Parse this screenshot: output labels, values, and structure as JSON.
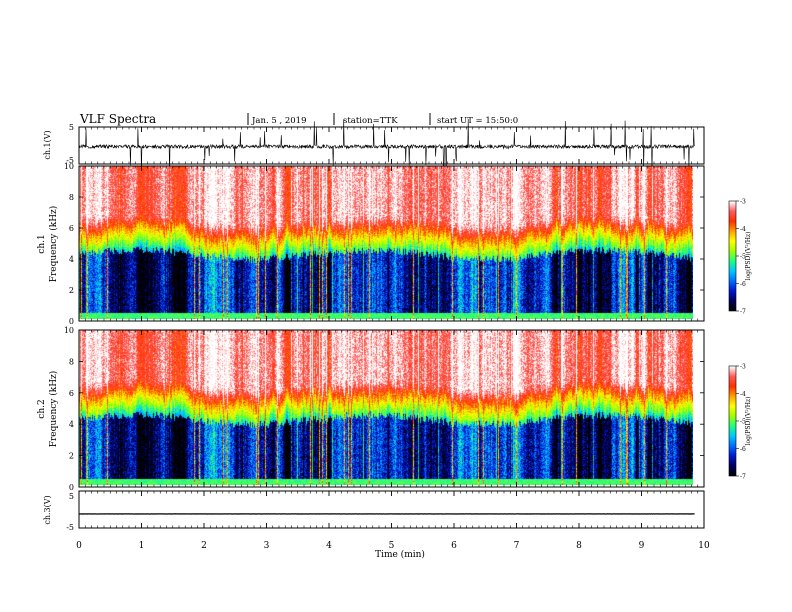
{
  "header": {
    "title": "VLF Spectra",
    "date": "Jan. 5 , 2019",
    "station": "station=TTK",
    "start": "start UT = 15:50:0"
  },
  "colors": {
    "map": [
      "#000000",
      "#000060",
      "#0018d0",
      "#0070ff",
      "#00c8ff",
      "#20ff80",
      "#a0ff00",
      "#ffff00",
      "#ffa000",
      "#ff3000",
      "#ff5a5a",
      "#ffffff"
    ]
  },
  "chart_data": [
    {
      "type": "line",
      "panel": "ch1-waveform",
      "ylabel": "ch.1(V)",
      "yticks": [
        "5",
        "-5"
      ],
      "ylim": [
        -5,
        5
      ],
      "xlim": [
        0,
        10
      ],
      "series": [
        {
          "values_description_free": true,
          "base": -0.3,
          "noise": 1.0
        }
      ]
    },
    {
      "type": "heatmap",
      "panel": "ch1-spectrogram",
      "ylabel": "ch.1 Frequency (kHz)",
      "ylabel_parts": [
        "ch.1",
        "Frequency (kHz)"
      ],
      "yticks": [
        "0",
        "2",
        "4",
        "6",
        "8",
        "10"
      ],
      "ylim": [
        0,
        10
      ],
      "xlim": [
        0,
        10
      ],
      "colorbar": {
        "label": "log(PSD)(V²/Hz)",
        "ticks": [
          "-3",
          "-4",
          "-5",
          "-6",
          "-7"
        ],
        "range": [
          -7,
          -3
        ]
      }
    },
    {
      "type": "heatmap",
      "panel": "ch2-spectrogram",
      "ylabel": "ch.2 Frequency (kHz)",
      "ylabel_parts": [
        "ch.2",
        "Frequency (kHz)"
      ],
      "yticks": [
        "0",
        "2",
        "4",
        "6",
        "8",
        "10"
      ],
      "ylim": [
        0,
        10
      ],
      "xlim": [
        0,
        10
      ],
      "colorbar": {
        "label": "log(PSD)(V²/Hz)",
        "ticks": [
          "-3",
          "-4",
          "-5",
          "-6",
          "-7"
        ],
        "range": [
          -7,
          -3
        ]
      }
    },
    {
      "type": "line",
      "panel": "ch3-waveform",
      "ylabel": "ch.3(V)",
      "yticks": [
        "5",
        "-5"
      ],
      "ylim": [
        -5,
        5
      ],
      "xlim": [
        0,
        10
      ],
      "series": [
        {
          "base": -1.2,
          "noise": 0.05
        }
      ]
    }
  ],
  "xaxis": {
    "label": "Time (min)",
    "ticks": [
      "0",
      "1",
      "2",
      "3",
      "4",
      "5",
      "6",
      "7",
      "8",
      "9",
      "10"
    ],
    "range": [
      0,
      10
    ],
    "data_end": 9.85
  }
}
